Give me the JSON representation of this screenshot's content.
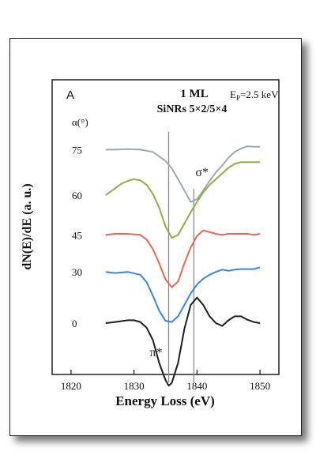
{
  "chart_data": {
    "type": "line",
    "panel_label": "A",
    "title": "1 ML",
    "subtitle": "SiNRs 5×2/5×4",
    "annotation_energy": {
      "base": "E",
      "sub": "P",
      "rest": "=2.5 keV"
    },
    "xlabel": "Energy Loss (eV)",
    "ylabel": "dN(E)/dE (a. u.)",
    "xlim": [
      1817,
      1853
    ],
    "xticks": [
      "1820",
      "1830",
      "1840",
      "1850"
    ],
    "xtick_values": [
      1820,
      1830,
      1840,
      1850
    ],
    "legend_title": "α(°)",
    "y_scale": "arbitrary units, curves vertically offset",
    "grid": false,
    "peaks": [
      {
        "label": "π*",
        "x": 1835.5
      },
      {
        "label": "σ*",
        "x": 1839.5
      }
    ],
    "series": [
      {
        "name": "75",
        "color": "#9aa9b8",
        "offset": 3.05,
        "x": [
          1825.5,
          1827,
          1829,
          1831,
          1833,
          1835,
          1836,
          1837,
          1838,
          1839,
          1840,
          1841,
          1842,
          1843,
          1844,
          1845,
          1846,
          1847,
          1848,
          1849,
          1850
        ],
        "y": [
          0,
          0,
          0.01,
          0,
          -0.04,
          -0.2,
          -0.33,
          -0.52,
          -0.72,
          -0.92,
          -0.87,
          -0.72,
          -0.55,
          -0.4,
          -0.28,
          -0.14,
          -0.04,
          0.02,
          0.06,
          0.05,
          0.05
        ]
      },
      {
        "name": "60",
        "color": "#8fae4a",
        "offset": 2.25,
        "x": [
          1825.5,
          1827,
          1828,
          1829,
          1830,
          1831,
          1832,
          1833,
          1834,
          1835,
          1836,
          1837,
          1838,
          1839,
          1840,
          1841,
          1842,
          1843,
          1844,
          1845,
          1846,
          1847,
          1848,
          1849,
          1850
        ],
        "y": [
          0,
          0.12,
          0.2,
          0.25,
          0.28,
          0.26,
          0.18,
          0.02,
          -0.22,
          -0.55,
          -0.75,
          -0.7,
          -0.5,
          -0.3,
          -0.12,
          0.05,
          0.18,
          0.28,
          0.38,
          0.48,
          0.55,
          0.58,
          0.58,
          0.58,
          0.58
        ]
      },
      {
        "name": "45",
        "color": "#e06a5a",
        "offset": 1.55,
        "x": [
          1825.5,
          1827,
          1829,
          1831,
          1832,
          1833,
          1834,
          1835,
          1836,
          1837,
          1838,
          1839,
          1840,
          1841,
          1842,
          1843,
          1844,
          1845,
          1846,
          1847,
          1848,
          1849,
          1850
        ],
        "y": [
          0,
          0.02,
          0.02,
          0,
          -0.08,
          -0.25,
          -0.5,
          -0.78,
          -0.92,
          -0.82,
          -0.5,
          -0.22,
          -0.02,
          0.08,
          0.05,
          0.02,
          0,
          0.02,
          0.02,
          0.02,
          0.02,
          0,
          0.02
        ]
      },
      {
        "name": "30",
        "color": "#3a87d8",
        "offset": 0.9,
        "x": [
          1825.5,
          1827,
          1829,
          1831,
          1832,
          1833,
          1834,
          1835,
          1836,
          1837,
          1838,
          1839,
          1840,
          1841,
          1842,
          1843,
          1844,
          1845,
          1846,
          1847,
          1848,
          1849,
          1850
        ],
        "y": [
          0,
          -0.02,
          0,
          -0.05,
          -0.18,
          -0.42,
          -0.68,
          -0.86,
          -0.88,
          -0.78,
          -0.58,
          -0.38,
          -0.22,
          -0.12,
          -0.05,
          0,
          0.04,
          0.02,
          0.04,
          0.05,
          0.05,
          0.05,
          0.08
        ]
      },
      {
        "name": "0",
        "color": "#1e1e1e",
        "offset": 0,
        "x": [
          1825.5,
          1827,
          1829,
          1830,
          1831,
          1832,
          1833,
          1834,
          1835,
          1835.5,
          1836,
          1837,
          1838,
          1839,
          1840,
          1841,
          1842,
          1843,
          1844,
          1845,
          1846,
          1847,
          1848,
          1849,
          1850
        ],
        "y": [
          0,
          0.02,
          0.05,
          0.05,
          0.02,
          -0.08,
          -0.3,
          -0.7,
          -1.0,
          -1.1,
          -1.05,
          -0.7,
          -0.1,
          0.32,
          0.45,
          0.32,
          0.12,
          0.0,
          -0.05,
          0.05,
          0.12,
          0.12,
          0.06,
          0.02,
          0.0
        ]
      }
    ]
  }
}
